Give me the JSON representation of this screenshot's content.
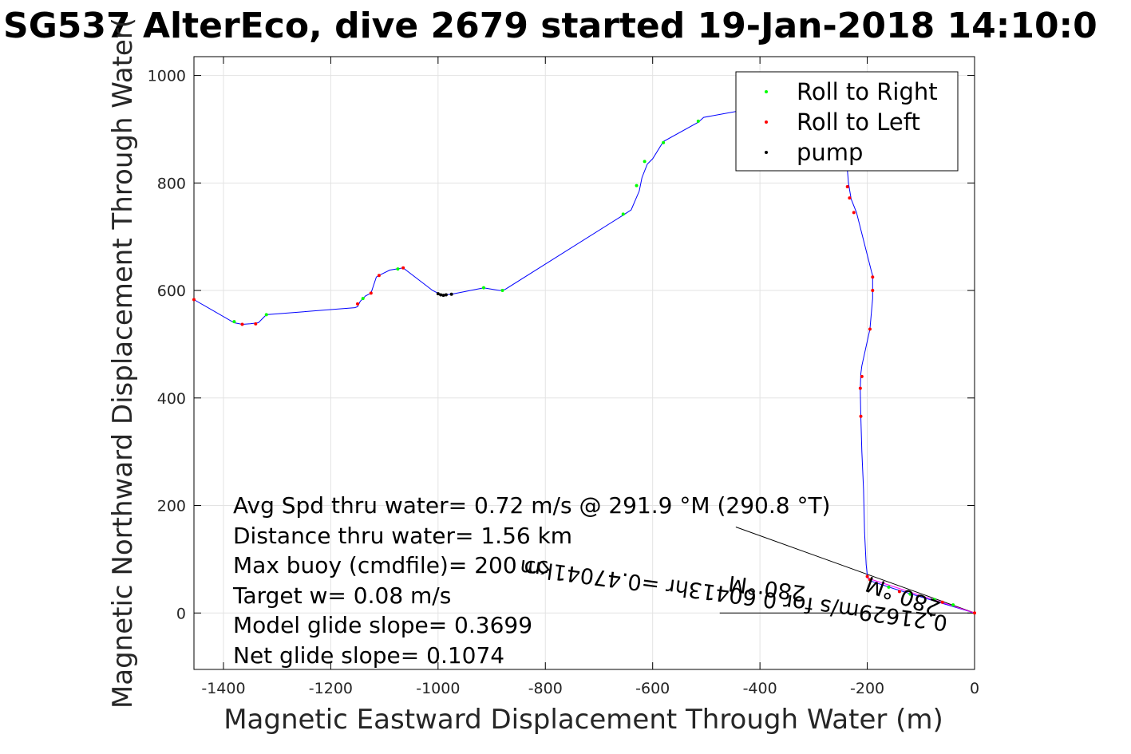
{
  "chart_data": {
    "type": "line",
    "title": "SG537 AlterEco, dive 2679 started 19-Jan-2018 14:10:0",
    "xlabel": "Magnetic Eastward Displacement Through Water (m)",
    "ylabel": "Magnetic Northward Displacement Through Water(",
    "xlim": [
      -1455,
      0
    ],
    "ylim": [
      -105,
      1035
    ],
    "xticks": [
      -1400,
      -1200,
      -1000,
      -800,
      -600,
      -400,
      -200,
      0
    ],
    "yticks": [
      0,
      200,
      400,
      600,
      800,
      1000
    ],
    "grid": true,
    "legend_position": "top-right",
    "legend": [
      {
        "label": "Roll to Right",
        "color": "#00ff00"
      },
      {
        "label": "Roll to Left",
        "color": "#ff0000"
      },
      {
        "label": "pump",
        "color": "#000000"
      }
    ],
    "series": [
      {
        "color": "#0000ff",
        "points": [
          [
            0,
            0
          ],
          [
            -100,
            30
          ],
          [
            -150,
            45
          ],
          [
            -195,
            60
          ],
          [
            -200,
            70
          ],
          [
            -202,
            90
          ],
          [
            -205,
            150
          ],
          [
            -207,
            230
          ],
          [
            -210,
            300
          ],
          [
            -212,
            366
          ],
          [
            -213,
            415
          ],
          [
            -212,
            445
          ],
          [
            -210,
            460
          ],
          [
            -195,
            528
          ],
          [
            -190,
            585
          ],
          [
            -190,
            605
          ],
          [
            -190,
            628
          ],
          [
            -192,
            635
          ],
          [
            -220,
            745
          ],
          [
            -230,
            770
          ],
          [
            -235,
            800
          ],
          [
            -240,
            860
          ],
          [
            -250,
            930
          ],
          [
            -300,
            930
          ],
          [
            -445,
            933
          ],
          [
            -505,
            922
          ],
          [
            -515,
            913
          ],
          [
            -580,
            877
          ],
          [
            -600,
            845
          ],
          [
            -610,
            835
          ],
          [
            -620,
            810
          ],
          [
            -625,
            785
          ],
          [
            -640,
            750
          ],
          [
            -655,
            740
          ],
          [
            -875,
            602
          ],
          [
            -885,
            600
          ],
          [
            -915,
            605
          ],
          [
            -975,
            593
          ],
          [
            -985,
            592
          ],
          [
            -995,
            592
          ],
          [
            -1000,
            595
          ],
          [
            -1010,
            600
          ],
          [
            -1065,
            642
          ],
          [
            -1090,
            638
          ],
          [
            -1110,
            628
          ],
          [
            -1115,
            625
          ],
          [
            -1125,
            595
          ],
          [
            -1135,
            590
          ],
          [
            -1145,
            580
          ],
          [
            -1150,
            570
          ],
          [
            -1155,
            568
          ],
          [
            -1320,
            555
          ],
          [
            -1335,
            540
          ],
          [
            -1350,
            538
          ],
          [
            -1365,
            537
          ],
          [
            -1380,
            540
          ],
          [
            -1455,
            583
          ]
        ]
      },
      {
        "color": "#ff00ff",
        "points": [
          [
            0,
            0
          ],
          [
            -200,
            65
          ]
        ]
      }
    ],
    "markers": {
      "roll_right": [
        [
          -40,
          15
        ],
        [
          -75,
          25
        ],
        [
          -120,
          35
        ],
        [
          -160,
          48
        ],
        [
          -515,
          915
        ],
        [
          -580,
          875
        ],
        [
          -615,
          840
        ],
        [
          -630,
          795
        ],
        [
          -655,
          742
        ],
        [
          -880,
          600
        ],
        [
          -915,
          605
        ],
        [
          -1075,
          640
        ],
        [
          -1140,
          585
        ],
        [
          -1320,
          555
        ],
        [
          -1380,
          542
        ]
      ],
      "roll_left": [
        [
          0,
          0
        ],
        [
          -60,
          20
        ],
        [
          -140,
          40
        ],
        [
          -195,
          62
        ],
        [
          -200,
          68
        ],
        [
          -190,
          600
        ],
        [
          -190,
          625
        ],
        [
          -195,
          528
        ],
        [
          -210,
          440
        ],
        [
          -213,
          418
        ],
        [
          -212,
          366
        ],
        [
          -225,
          745
        ],
        [
          -233,
          772
        ],
        [
          -237,
          793
        ],
        [
          -1065,
          642
        ],
        [
          -1110,
          628
        ],
        [
          -1125,
          595
        ],
        [
          -1150,
          575
        ],
        [
          -1340,
          538
        ],
        [
          -1365,
          537
        ],
        [
          -1455,
          583
        ]
      ],
      "pump": [
        [
          -985,
          592
        ],
        [
          -995,
          592
        ],
        [
          -1000,
          594
        ],
        [
          -975,
          593
        ],
        [
          -990,
          591
        ]
      ]
    },
    "annotation_lines": [
      {
        "from": [
          0,
          0
        ],
        "to": [
          -475,
          0
        ]
      },
      {
        "from": [
          0,
          0
        ],
        "to": [
          -445,
          160
        ]
      }
    ],
    "current_labels": {
      "speed": "0.21629m/s for 0.60413hr =0.47041km",
      "heading": "280 °M",
      "heading_repeat": "280 °M"
    },
    "stats": [
      "Avg Spd thru water=  0.72 m/s @ 291.9 °M (290.8 °T)",
      "Distance thru water= 1.56 km",
      "Max buoy (cmdfile)= 200 cc",
      "Target w= 0.08 m/s",
      "Model glide slope= 0.3699",
      "Net glide slope= 0.1074"
    ]
  }
}
